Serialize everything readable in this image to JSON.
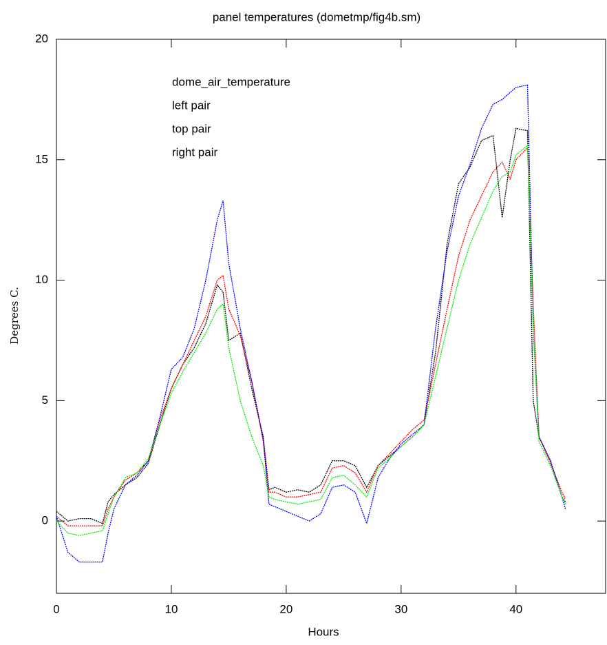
{
  "chart_data": {
    "type": "line",
    "title": "panel temperatures (dometmp/fig4b.sm)",
    "x_label": "Hours",
    "y_label": "Degrees C.",
    "xlim": [
      0,
      47.8
    ],
    "ylim": [
      -3,
      20
    ],
    "xticks": [
      0,
      10,
      20,
      30,
      40
    ],
    "yticks": [
      0,
      5,
      10,
      15,
      20
    ],
    "legend": "upper left",
    "x": [
      0,
      1,
      2,
      3,
      4,
      4.5,
      5,
      6,
      7,
      8,
      9,
      10,
      11,
      12,
      13,
      14,
      14.5,
      15,
      16,
      17,
      18,
      18.5,
      19,
      20,
      21,
      22,
      23,
      24,
      25,
      26,
      27,
      28,
      29,
      30,
      31,
      32,
      33,
      34,
      35,
      36,
      37,
      38,
      38.8,
      39.5,
      40,
      41,
      41.5,
      42,
      43,
      44,
      44.3
    ],
    "series": [
      {
        "name": "dome_air_temperature",
        "color": "#000000",
        "values": [
          0.4,
          0.0,
          0.1,
          0.1,
          -0.1,
          0.8,
          1.1,
          1.5,
          1.8,
          2.4,
          4.0,
          5.5,
          6.5,
          7.2,
          8.2,
          9.8,
          9.5,
          7.5,
          7.8,
          5.5,
          3.5,
          1.3,
          1.4,
          1.2,
          1.3,
          1.2,
          1.5,
          2.5,
          2.5,
          2.3,
          1.4,
          2.3,
          2.7,
          3.1,
          3.5,
          4.0,
          7.0,
          11.5,
          14.0,
          14.7,
          15.8,
          16.0,
          12.6,
          15.0,
          16.3,
          16.2,
          5.0,
          3.5,
          2.5,
          1.0,
          0.8
        ]
      },
      {
        "name": "left pair",
        "color": "#ff0000",
        "values": [
          0.2,
          -0.2,
          -0.2,
          -0.2,
          -0.2,
          0.5,
          1.0,
          1.7,
          2.0,
          2.5,
          4.2,
          5.5,
          6.5,
          7.5,
          8.5,
          10.0,
          10.2,
          8.8,
          7.7,
          5.8,
          3.3,
          1.2,
          1.2,
          1.0,
          1.0,
          1.1,
          1.2,
          2.2,
          2.3,
          2.0,
          1.2,
          2.3,
          2.8,
          3.3,
          3.8,
          4.2,
          6.5,
          8.8,
          11.0,
          12.5,
          13.5,
          14.5,
          14.9,
          14.2,
          15.0,
          15.5,
          9.0,
          3.5,
          2.4,
          1.2,
          0.9
        ]
      },
      {
        "name": "top pair",
        "color": "#0000ff",
        "values": [
          0.2,
          -1.3,
          -1.7,
          -1.7,
          -1.7,
          -0.5,
          0.5,
          1.5,
          1.9,
          2.5,
          4.3,
          6.3,
          6.8,
          8.0,
          10.0,
          12.5,
          13.3,
          10.7,
          8.0,
          5.8,
          3.4,
          0.7,
          0.6,
          0.4,
          0.2,
          0.0,
          0.3,
          1.4,
          1.5,
          1.2,
          -0.1,
          1.8,
          2.6,
          3.2,
          3.6,
          4.0,
          8.0,
          11.2,
          13.5,
          14.8,
          16.3,
          17.3,
          17.5,
          17.8,
          18.0,
          18.1,
          8.0,
          3.5,
          2.5,
          1.0,
          0.5
        ]
      },
      {
        "name": "right pair",
        "color": "#00ee00",
        "values": [
          0.0,
          -0.5,
          -0.6,
          -0.5,
          -0.4,
          0.3,
          1.0,
          1.8,
          2.0,
          2.6,
          4.0,
          5.3,
          6.2,
          7.0,
          7.8,
          8.8,
          9.0,
          7.2,
          5.0,
          3.5,
          2.3,
          1.0,
          0.9,
          0.8,
          0.7,
          0.8,
          0.9,
          1.8,
          1.9,
          1.5,
          1.0,
          2.2,
          2.6,
          3.1,
          3.5,
          4.0,
          6.0,
          8.0,
          10.0,
          11.5,
          12.6,
          13.7,
          14.3,
          14.5,
          15.2,
          15.6,
          8.0,
          3.3,
          2.3,
          1.0,
          0.7
        ]
      }
    ]
  }
}
